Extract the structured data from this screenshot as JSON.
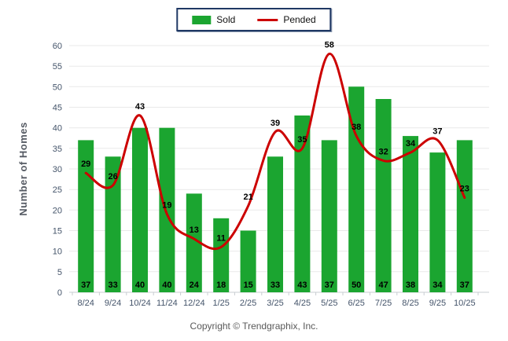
{
  "colors": {
    "sold_green": "#1ba530",
    "pended_red": "#cc0000",
    "legend_border": "#1f3864",
    "axis_text": "#44546a",
    "gridline": "#e9e9e9",
    "axis_line": "#c9cdd2"
  },
  "footer": {
    "text": "Copyright © Trendgraphix, Inc."
  },
  "chart_data": {
    "type": "bar",
    "title": "",
    "xlabel": "",
    "ylabel": "Number of Homes",
    "ylim": [
      0,
      60
    ],
    "ytick_step": 5,
    "grid": true,
    "legend_position": "top-center",
    "categories": [
      "8/24",
      "9/24",
      "10/24",
      "11/24",
      "12/24",
      "1/25",
      "2/25",
      "3/25",
      "4/25",
      "5/25",
      "6/25",
      "7/25",
      "8/25",
      "9/25",
      "10/25"
    ],
    "series": [
      {
        "name": "Sold",
        "type": "bar",
        "color": "#1ba530",
        "values": [
          37,
          33,
          40,
          40,
          24,
          18,
          15,
          33,
          43,
          37,
          50,
          47,
          38,
          34,
          37
        ]
      },
      {
        "name": "Pended",
        "type": "line",
        "color": "#cc0000",
        "values": [
          29,
          26,
          43,
          19,
          13,
          11,
          21,
          39,
          35,
          58,
          38,
          32,
          34,
          37,
          23
        ]
      }
    ]
  }
}
